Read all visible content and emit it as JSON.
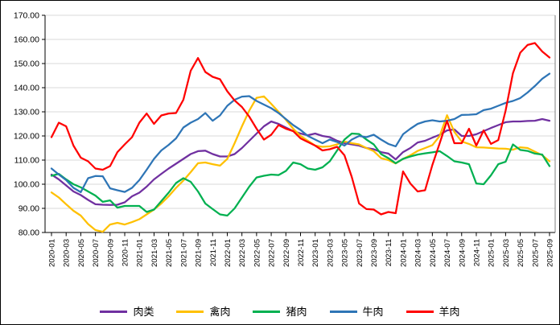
{
  "chart_data": {
    "type": "line",
    "title": "",
    "xlabel": "",
    "ylabel": "",
    "grid": true,
    "legend_position": "bottom",
    "ylim": [
      80,
      170
    ],
    "y_tick_interval": 10,
    "y_tick_labels": [
      "170.00",
      "160.00",
      "150.00",
      "140.00",
      "130.00",
      "120.00",
      "110.00",
      "100.00",
      "90.00",
      "80.00"
    ],
    "x_tick_step": 2,
    "x_tick_labels": [
      "2020-01",
      "2020-03",
      "2020-05",
      "2020-07",
      "2020-09",
      "2020-11",
      "2021-01",
      "2021-03",
      "2021-05",
      "2021-07",
      "2021-09",
      "2021-11",
      "2022-01",
      "2022-03",
      "2022-05",
      "2022-07",
      "2022-09",
      "2022-11",
      "2023-01",
      "2023-03",
      "2023-05",
      "2023-07",
      "2023-09",
      "2023-11",
      "2024-01",
      "2024-03",
      "2024-05",
      "2024-07",
      "2024-09",
      "2024-11",
      "2025-01",
      "2025-03",
      "2025-05",
      "2025-07",
      "2025-09"
    ],
    "months": [
      "2020-01",
      "2020-02",
      "2020-03",
      "2020-04",
      "2020-05",
      "2020-06",
      "2020-07",
      "2020-08",
      "2020-09",
      "2020-10",
      "2020-11",
      "2020-12",
      "2021-01",
      "2021-02",
      "2021-03",
      "2021-04",
      "2021-05",
      "2021-06",
      "2021-07",
      "2021-08",
      "2021-09",
      "2021-10",
      "2021-11",
      "2021-12",
      "2022-01",
      "2022-02",
      "2022-03",
      "2022-04",
      "2022-05",
      "2022-06",
      "2022-07",
      "2022-08",
      "2022-09",
      "2022-10",
      "2022-11",
      "2022-12",
      "2023-01",
      "2023-02",
      "2023-03",
      "2023-04",
      "2023-05",
      "2023-06",
      "2023-07",
      "2023-08",
      "2023-09",
      "2023-10",
      "2023-11",
      "2023-12",
      "2024-01",
      "2024-02",
      "2024-03",
      "2024-04",
      "2024-05",
      "2024-06",
      "2024-07",
      "2024-08",
      "2024-09",
      "2024-10",
      "2024-11",
      "2024-12",
      "2025-01",
      "2025-02",
      "2025-03",
      "2025-04",
      "2025-05",
      "2025-06",
      "2025-07",
      "2025-08",
      "2025-09"
    ],
    "series": [
      {
        "id": "meat",
        "name": "肉类",
        "color": "#7030A0",
        "values": [
          104.0,
          102.0,
          99.5,
          97.0,
          95.5,
          93.5,
          91.7,
          91.5,
          91.4,
          91.5,
          92.5,
          95.0,
          96.5,
          99.0,
          102.0,
          104.3,
          106.5,
          108.5,
          110.5,
          112.5,
          113.7,
          113.9,
          112.5,
          111.5,
          111.5,
          112.5,
          115.0,
          118.0,
          121.0,
          124.0,
          126.0,
          125.0,
          123.5,
          122.0,
          121.0,
          120.3,
          121.0,
          120.0,
          119.5,
          118.0,
          117.0,
          116.5,
          116.0,
          115.0,
          114.5,
          113.3,
          112.7,
          110.3,
          113.3,
          115.0,
          117.3,
          118.0,
          119.3,
          120.5,
          122.3,
          122.7,
          120.0,
          120.0,
          120.7,
          122.0,
          123.3,
          124.5,
          125.7,
          126.0,
          126.0,
          126.2,
          126.3,
          127.0,
          126.3
        ]
      },
      {
        "id": "poultry",
        "name": "禽肉",
        "color": "#FFC000",
        "values": [
          96.6,
          94.5,
          91.7,
          89.0,
          87.0,
          83.5,
          81.0,
          80.3,
          83.3,
          84.0,
          83.3,
          84.3,
          85.5,
          87.5,
          89.5,
          92.0,
          95.0,
          98.5,
          101.5,
          105.0,
          108.7,
          109.0,
          108.3,
          107.7,
          110.5,
          117.0,
          124.0,
          130.5,
          135.8,
          136.4,
          133.3,
          130.0,
          126.7,
          123.0,
          120.0,
          118.0,
          116.0,
          115.5,
          115.7,
          116.5,
          117.7,
          117.0,
          116.5,
          115.0,
          113.7,
          110.8,
          110.0,
          108.6,
          110.5,
          112.0,
          113.8,
          115.0,
          116.2,
          120.0,
          128.6,
          121.7,
          117.7,
          116.7,
          115.3,
          115.2,
          115.0,
          114.8,
          114.7,
          114.3,
          115.3,
          115.0,
          113.5,
          112.0,
          109.5
        ]
      },
      {
        "id": "pork",
        "name": "猪肉",
        "color": "#00B050",
        "values": [
          103.5,
          104.3,
          102.0,
          100.0,
          98.7,
          97.0,
          95.3,
          92.7,
          93.3,
          90.3,
          91.0,
          91.0,
          91.0,
          88.5,
          89.5,
          93.0,
          96.5,
          100.5,
          102.5,
          101.0,
          97.0,
          92.0,
          89.7,
          87.5,
          87.0,
          90.0,
          94.5,
          99.0,
          102.8,
          103.5,
          104.0,
          103.8,
          105.5,
          109.0,
          108.3,
          106.5,
          106.0,
          107.0,
          109.5,
          114.0,
          118.5,
          121.0,
          120.8,
          118.5,
          116.5,
          112.5,
          110.8,
          108.7,
          110.5,
          111.5,
          112.3,
          112.8,
          113.2,
          113.7,
          111.7,
          109.5,
          109.0,
          108.3,
          100.3,
          100.0,
          103.7,
          108.3,
          109.3,
          116.5,
          114.2,
          113.8,
          112.7,
          112.3,
          107.5
        ]
      },
      {
        "id": "beef",
        "name": "牛肉",
        "color": "#2E75B6",
        "values": [
          106.5,
          104.0,
          101.7,
          98.5,
          96.7,
          102.5,
          103.4,
          103.3,
          98.3,
          97.5,
          96.8,
          98.5,
          101.7,
          106.0,
          110.5,
          114.0,
          116.3,
          119.0,
          123.5,
          125.5,
          127.0,
          129.5,
          126.3,
          128.5,
          132.5,
          135.0,
          136.3,
          136.5,
          134.5,
          133.0,
          131.5,
          129.5,
          127.0,
          124.5,
          122.5,
          120.0,
          118.5,
          117.0,
          118.5,
          117.5,
          116.0,
          118.5,
          120.0,
          119.5,
          120.5,
          118.5,
          116.7,
          115.7,
          120.7,
          123.0,
          125.0,
          126.0,
          126.5,
          126.0,
          126.3,
          127.0,
          128.7,
          128.8,
          129.0,
          130.7,
          131.3,
          132.5,
          133.7,
          134.5,
          135.7,
          138.0,
          140.7,
          143.7,
          145.8
        ]
      },
      {
        "id": "mutton",
        "name": "羊肉",
        "color": "#FF0000",
        "values": [
          119.5,
          125.5,
          124.0,
          116.0,
          111.0,
          109.5,
          106.5,
          106.0,
          107.5,
          113.3,
          116.5,
          119.5,
          125.5,
          129.3,
          125.0,
          128.5,
          129.3,
          129.5,
          135.0,
          147.0,
          152.3,
          146.5,
          144.5,
          143.5,
          138.5,
          134.7,
          132.0,
          128.0,
          123.0,
          118.5,
          120.5,
          124.5,
          123.0,
          122.0,
          119.0,
          117.5,
          116.0,
          114.0,
          114.5,
          115.5,
          112.0,
          103.0,
          92.0,
          89.7,
          89.5,
          87.5,
          88.5,
          88.0,
          105.3,
          100.3,
          97.0,
          97.5,
          108.0,
          117.0,
          126.3,
          117.0,
          117.0,
          123.0,
          116.0,
          122.3,
          116.7,
          118.3,
          130.5,
          146.0,
          154.5,
          157.7,
          158.5,
          155.0,
          152.5
        ]
      }
    ],
    "colors": {
      "grid": "#d9d9d9",
      "axis": "#000000",
      "background": "#ffffff"
    }
  }
}
